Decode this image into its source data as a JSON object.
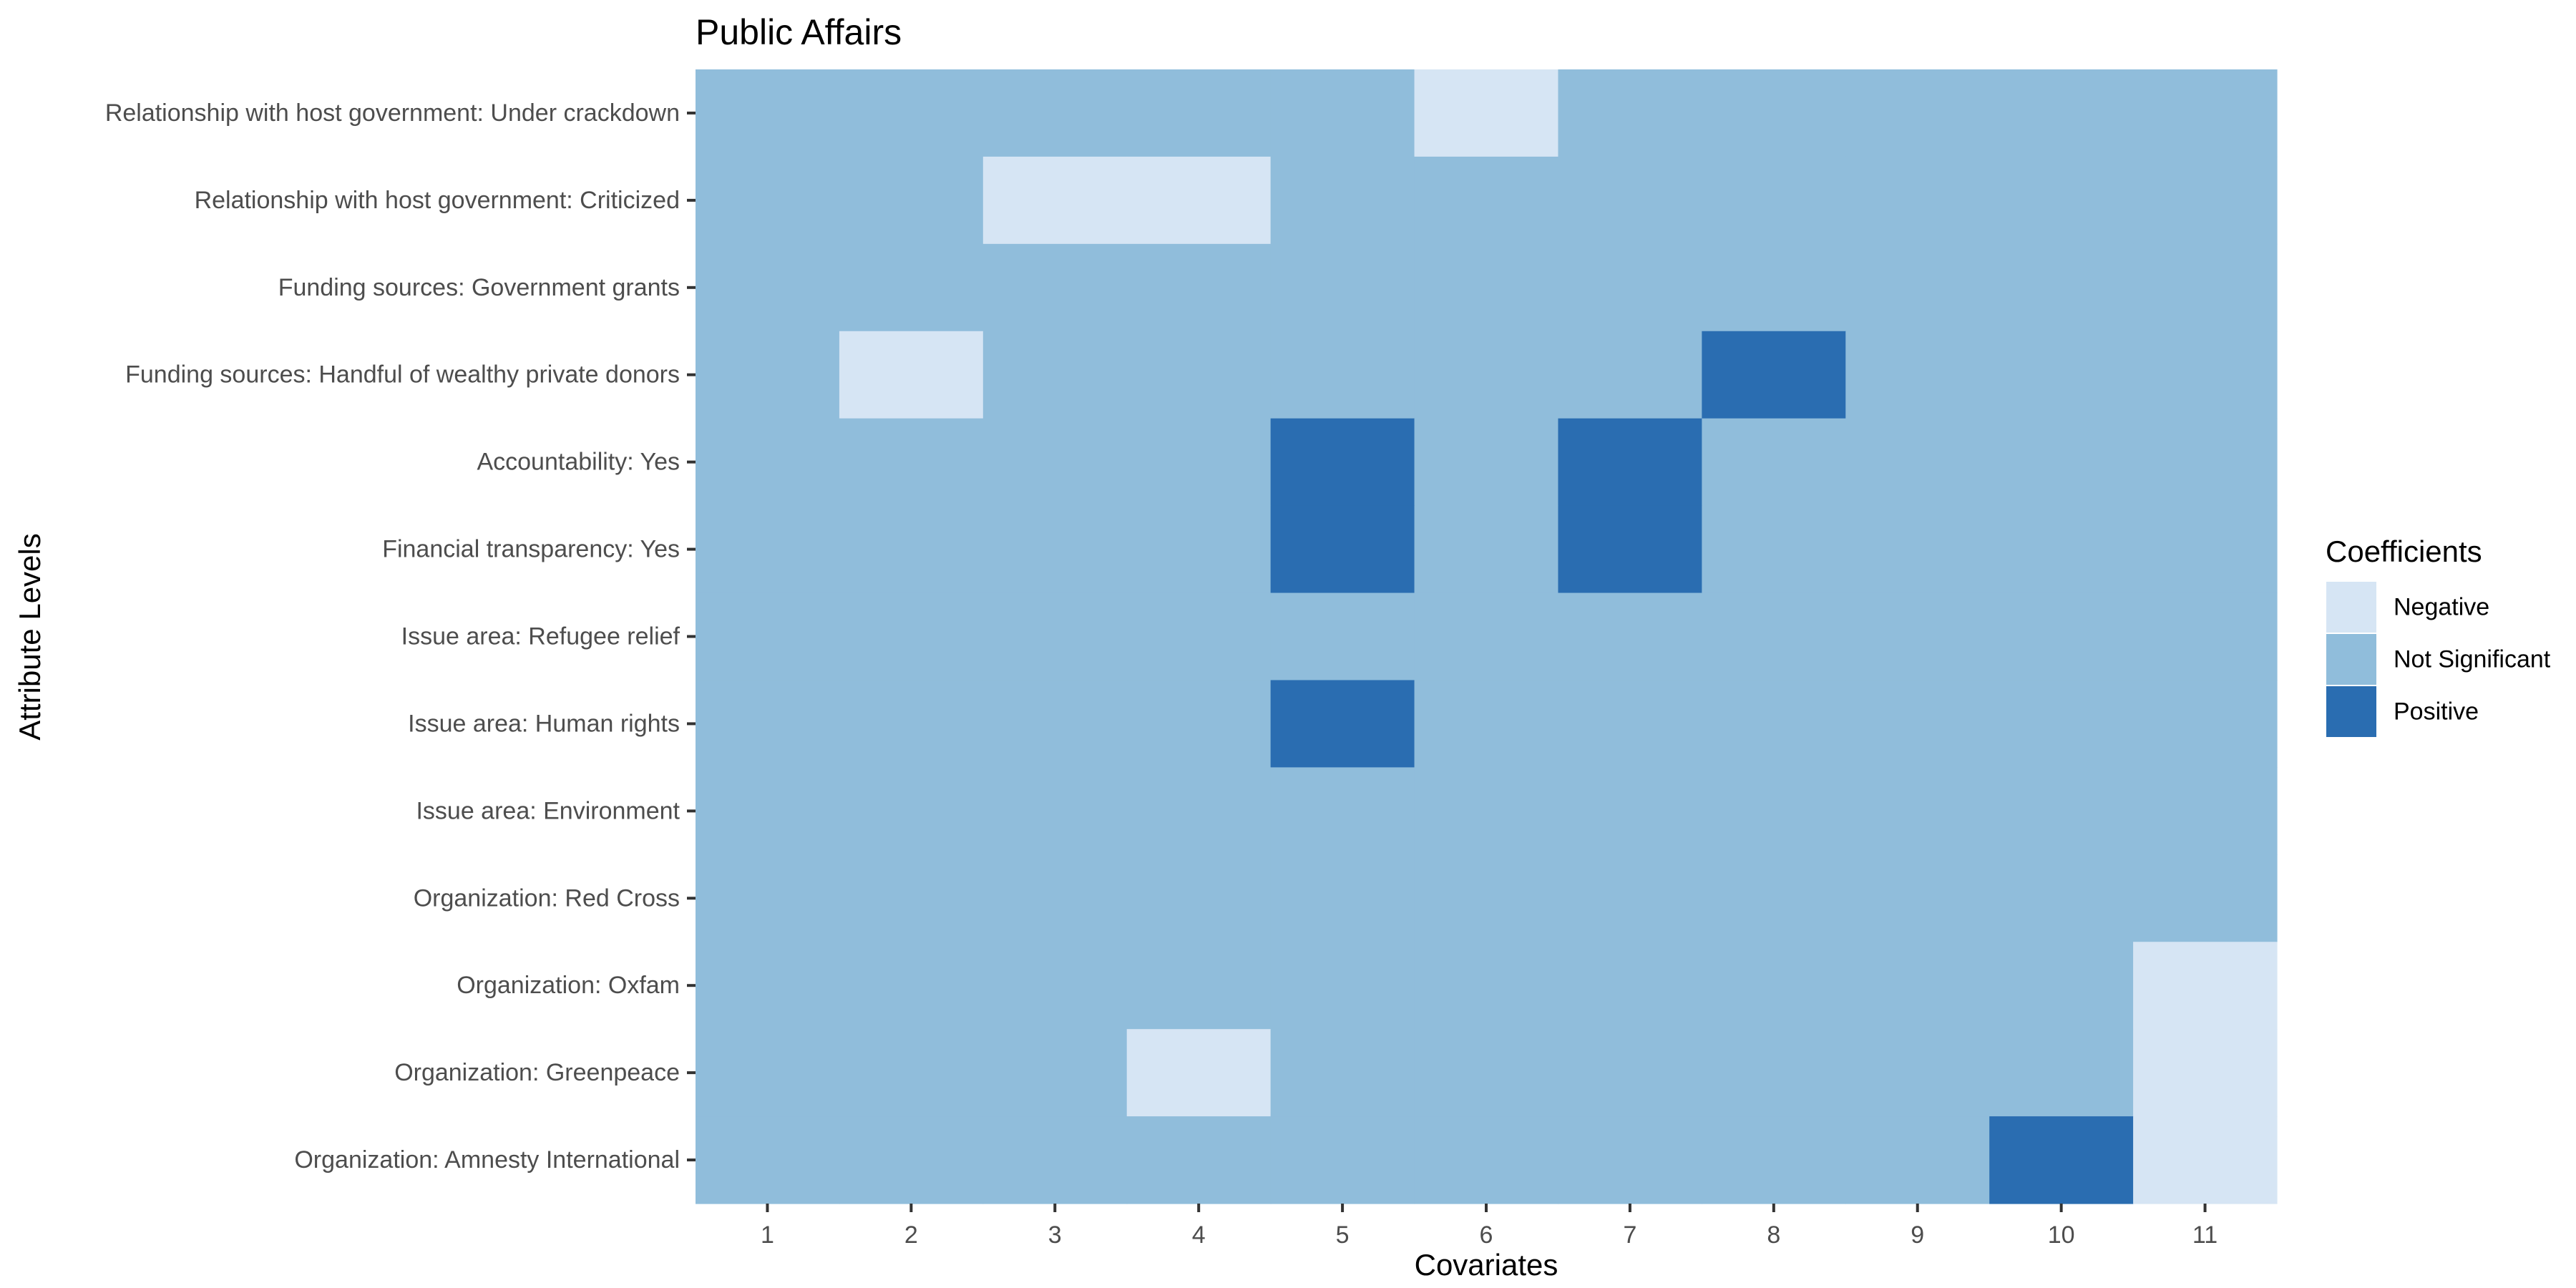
{
  "chart_data": {
    "type": "heatmap",
    "title": "Public Affairs",
    "xlabel": "Covariates",
    "ylabel": "Attribute Levels",
    "x_categories": [
      "1",
      "2",
      "3",
      "4",
      "5",
      "6",
      "7",
      "8",
      "9",
      "10",
      "11"
    ],
    "y_categories": [
      "Relationship with host government: Under crackdown",
      "Relationship with host government: Criticized",
      "Funding sources: Government grants",
      "Funding sources: Handful of wealthy private donors",
      "Accountability: Yes",
      "Financial transparency: Yes",
      "Issue area: Refugee relief",
      "Issue area: Human rights",
      "Issue area: Environment",
      "Organization: Red Cross",
      "Organization: Oxfam",
      "Organization: Greenpeace",
      "Organization: Amnesty International"
    ],
    "values": [
      [
        "N",
        "N",
        "N",
        "N",
        "N",
        "-",
        "N",
        "N",
        "N",
        "N",
        "N"
      ],
      [
        "N",
        "N",
        "-",
        "-",
        "N",
        "N",
        "N",
        "N",
        "N",
        "N",
        "N"
      ],
      [
        "N",
        "N",
        "N",
        "N",
        "N",
        "N",
        "N",
        "N",
        "N",
        "N",
        "N"
      ],
      [
        "N",
        "-",
        "N",
        "N",
        "N",
        "N",
        "N",
        "+",
        "N",
        "N",
        "N"
      ],
      [
        "N",
        "N",
        "N",
        "N",
        "+",
        "N",
        "+",
        "N",
        "N",
        "N",
        "N"
      ],
      [
        "N",
        "N",
        "N",
        "N",
        "+",
        "N",
        "+",
        "N",
        "N",
        "N",
        "N"
      ],
      [
        "N",
        "N",
        "N",
        "N",
        "N",
        "N",
        "N",
        "N",
        "N",
        "N",
        "N"
      ],
      [
        "N",
        "N",
        "N",
        "N",
        "+",
        "N",
        "N",
        "N",
        "N",
        "N",
        "N"
      ],
      [
        "N",
        "N",
        "N",
        "N",
        "N",
        "N",
        "N",
        "N",
        "N",
        "N",
        "N"
      ],
      [
        "N",
        "N",
        "N",
        "N",
        "N",
        "N",
        "N",
        "N",
        "N",
        "N",
        "N"
      ],
      [
        "N",
        "N",
        "N",
        "N",
        "N",
        "N",
        "N",
        "N",
        "N",
        "N",
        "-"
      ],
      [
        "N",
        "N",
        "N",
        "-",
        "N",
        "N",
        "N",
        "N",
        "N",
        "N",
        "-"
      ],
      [
        "N",
        "N",
        "N",
        "N",
        "N",
        "N",
        "N",
        "N",
        "N",
        "+",
        "-"
      ]
    ],
    "legend": {
      "title": "Coefficients",
      "position": "right",
      "entries": [
        {
          "key": "-",
          "label": "Negative",
          "color": "#d6e5f4"
        },
        {
          "key": "N",
          "label": "Not Significant",
          "color": "#90bddb"
        },
        {
          "key": "+",
          "label": "Positive",
          "color": "#2a6db1"
        }
      ]
    },
    "grid": false
  }
}
